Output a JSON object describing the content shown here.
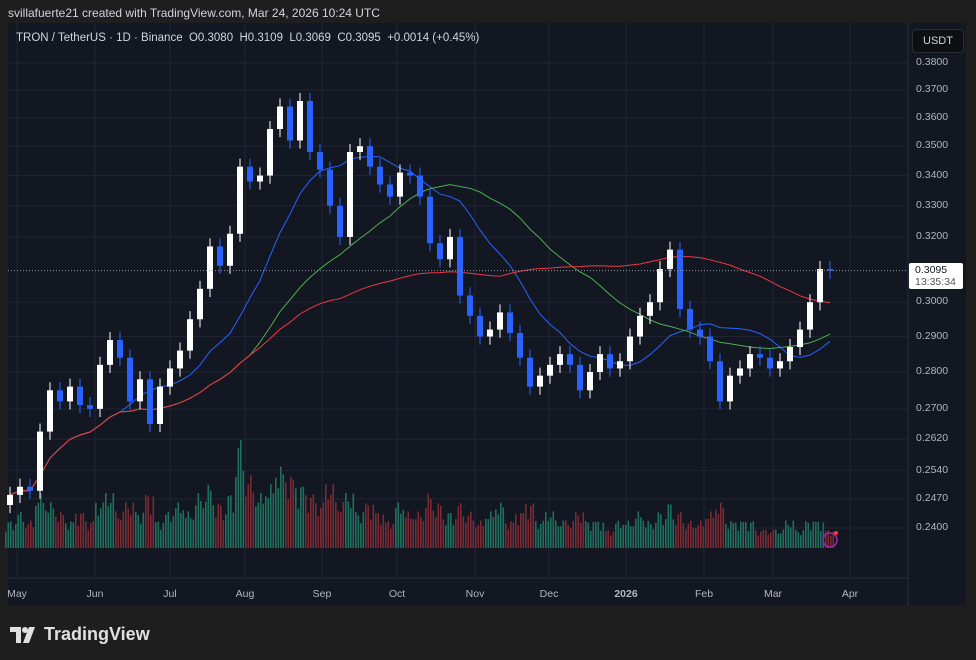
{
  "credit": "svillafuerte21 created with TradingView.com, Mar 24, 2026 10:24 UTC",
  "legend": {
    "symbol": "TRON / TetherUS · 1D · Binance",
    "open": "O0.3080",
    "high": "H0.3109",
    "low": "L0.3069",
    "close": "C0.3095",
    "change": "+0.0014 (+0.45%)"
  },
  "currency_button": "USDT",
  "last_price": {
    "value": "0.3095",
    "countdown": "13:35:34"
  },
  "brand": "TradingView",
  "colors": {
    "up": "#ffffff",
    "down": "#2962ff",
    "ma_fast": "#2962ff",
    "ma_mid": "#4caf50",
    "ma_slow": "#f23645",
    "vol_up": "#1f6f5c",
    "vol_down": "#7a2a33",
    "bg": "#131722"
  },
  "chart_data": {
    "type": "candlestick",
    "scale": "log",
    "ylim": [
      0.235,
      0.39
    ],
    "y_ticks": [
      "0.3800",
      "0.3700",
      "0.3600",
      "0.3500",
      "0.3400",
      "0.3300",
      "0.3200",
      "0.3000",
      "0.2900",
      "0.2800",
      "0.2700",
      "0.2620",
      "0.2540",
      "0.2470",
      "0.2400"
    ],
    "x_ticks": [
      "May",
      "Jun",
      "Jul",
      "Aug",
      "Sep",
      "Oct",
      "Nov",
      "Dec",
      "2026",
      "Feb",
      "Mar",
      "Apr"
    ],
    "grid": true,
    "closes": [
      0.248,
      0.25,
      0.249,
      0.264,
      0.275,
      0.272,
      0.276,
      0.271,
      0.27,
      0.282,
      0.289,
      0.284,
      0.272,
      0.278,
      0.266,
      0.276,
      0.281,
      0.286,
      0.295,
      0.304,
      0.317,
      0.311,
      0.321,
      0.343,
      0.338,
      0.34,
      0.356,
      0.364,
      0.352,
      0.366,
      0.348,
      0.342,
      0.33,
      0.32,
      0.348,
      0.35,
      0.343,
      0.337,
      0.333,
      0.341,
      0.34,
      0.333,
      0.318,
      0.313,
      0.32,
      0.302,
      0.296,
      0.29,
      0.292,
      0.297,
      0.291,
      0.284,
      0.276,
      0.279,
      0.282,
      0.285,
      0.282,
      0.275,
      0.28,
      0.285,
      0.281,
      0.283,
      0.29,
      0.296,
      0.3,
      0.31,
      0.316,
      0.298,
      0.292,
      0.29,
      0.283,
      0.272,
      0.279,
      0.281,
      0.285,
      0.284,
      0.281,
      0.283,
      0.287,
      0.292,
      0.3,
      0.31,
      0.3095
    ],
    "volume": [
      3,
      4,
      3,
      6,
      5,
      4,
      3,
      4,
      3,
      5,
      6,
      4,
      5,
      4,
      6,
      3,
      4,
      5,
      4,
      6,
      7,
      5,
      6,
      12,
      8,
      6,
      7,
      9,
      8,
      7,
      6,
      5,
      7,
      5,
      6,
      4,
      5,
      4,
      3,
      5,
      4,
      4,
      6,
      5,
      4,
      5,
      4,
      3,
      4,
      5,
      3,
      4,
      5,
      3,
      4,
      3,
      3,
      4,
      3,
      3,
      2,
      3,
      3,
      4,
      3,
      4,
      5,
      4,
      3,
      3,
      4,
      5,
      3,
      3,
      3,
      2,
      2,
      2,
      3,
      2,
      3,
      3,
      2
    ],
    "moving_averages": [
      {
        "color": "#2962ff"
      },
      {
        "color": "#4caf50"
      },
      {
        "color": "#f23645"
      }
    ],
    "last_price": 0.3095
  }
}
